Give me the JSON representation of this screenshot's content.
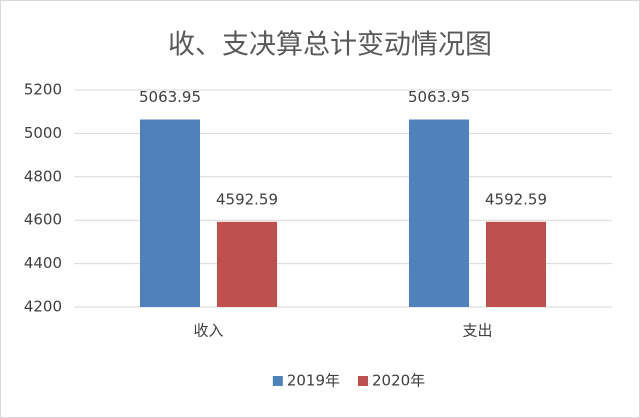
{
  "chart_data": {
    "type": "bar",
    "title": "收、支决算总计变动情况图",
    "categories": [
      "收入",
      "支出"
    ],
    "series": [
      {
        "name": "2019年",
        "color": "#4f81bd",
        "values": [
          5063.95,
          5063.95
        ]
      },
      {
        "name": "2020年",
        "color": "#c0504d",
        "values": [
          4592.59,
          4592.59
        ]
      }
    ],
    "ylim": [
      4200,
      5200
    ],
    "yticks": [
      4200,
      4400,
      4600,
      4800,
      5000,
      5200
    ],
    "grid": true,
    "legend": "bottom"
  }
}
